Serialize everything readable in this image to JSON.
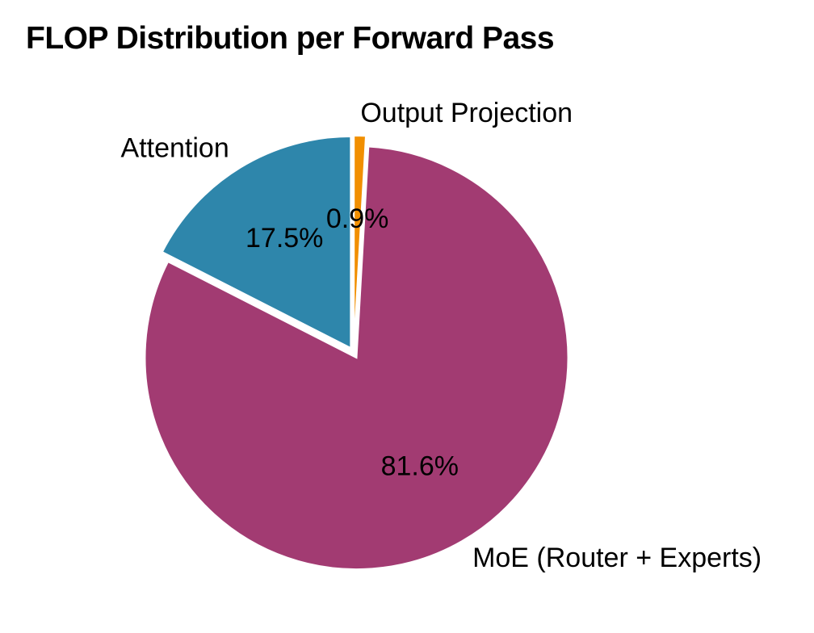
{
  "chart_data": {
    "type": "pie",
    "title": "FLOP Distribution per Forward Pass",
    "start_angle": 90,
    "direction": "counterclockwise",
    "slices": [
      {
        "label": "Attention",
        "value": 17.5,
        "pct_label": "17.5%",
        "color": "#2E86AB"
      },
      {
        "label": "MoE (Router + Experts)",
        "value": 81.6,
        "pct_label": "81.6%",
        "color": "#A23B72"
      },
      {
        "label": "Output Projection",
        "value": 0.9,
        "pct_label": "0.9%",
        "color": "#F18F01"
      }
    ]
  }
}
